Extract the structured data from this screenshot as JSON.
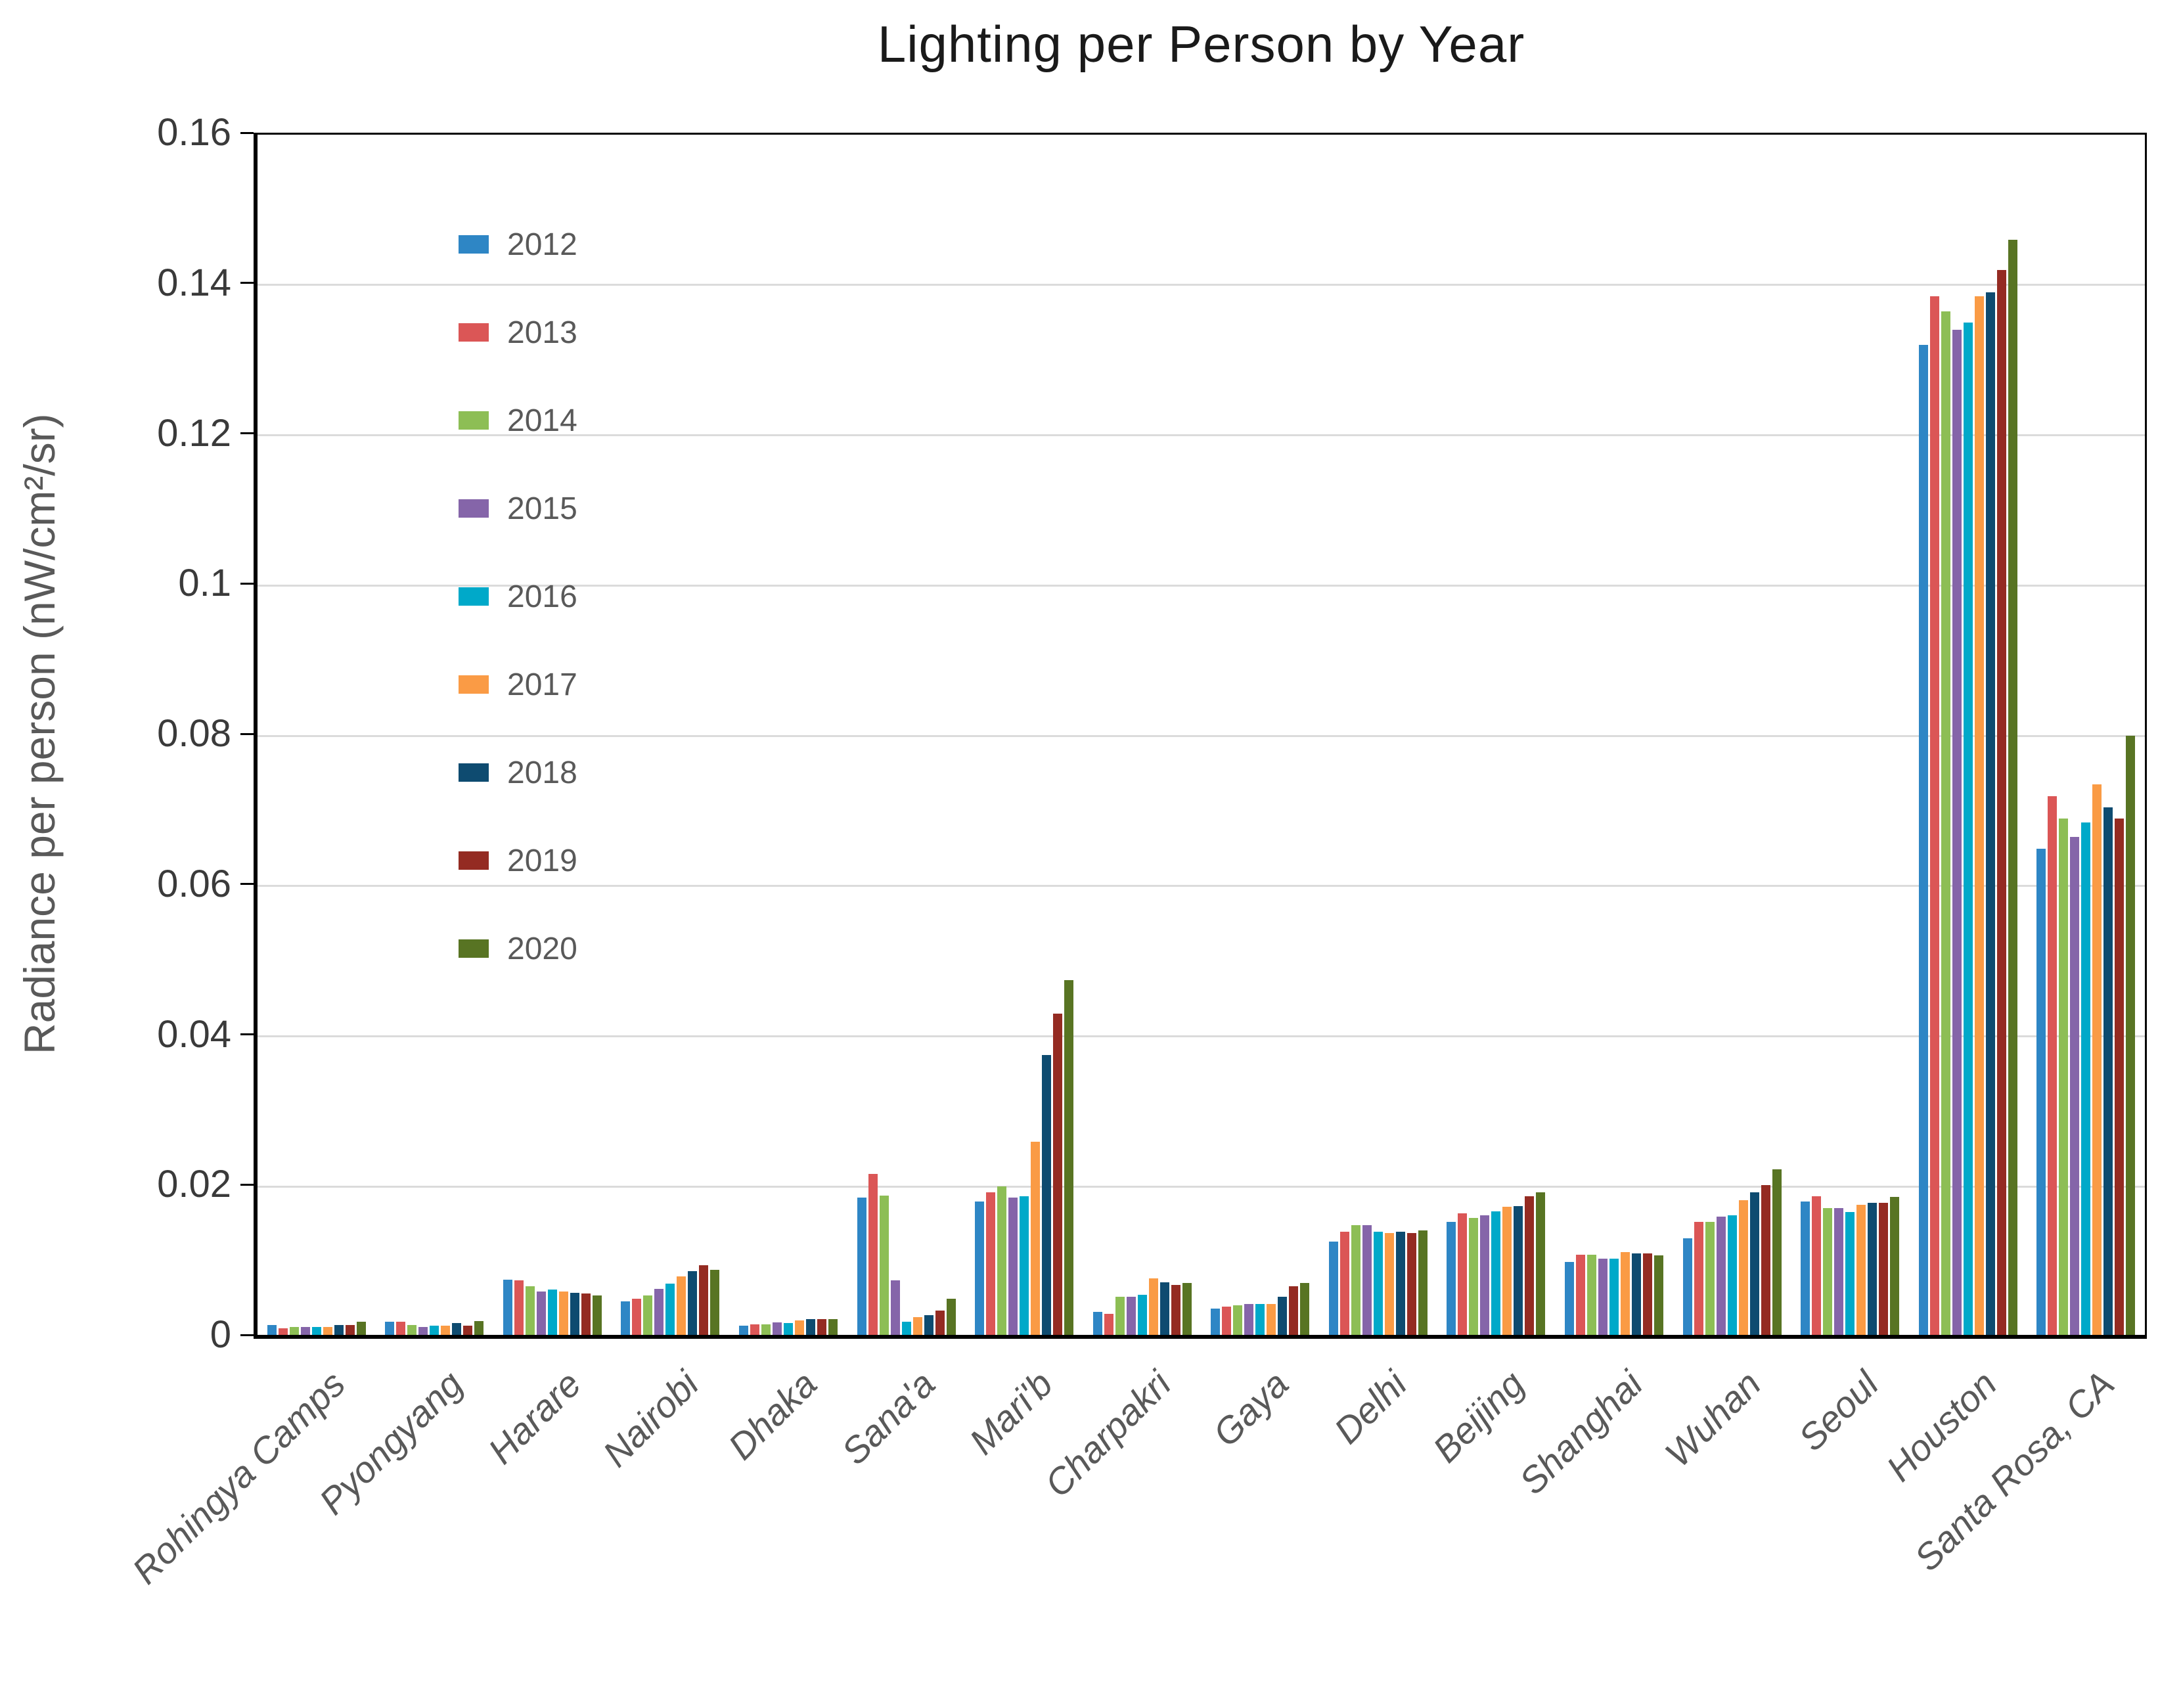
{
  "chart_data": {
    "type": "bar",
    "title": "Lighting per Person by Year",
    "ylabel": "Radiance per person (nW/cm²/sr)",
    "ylim": [
      0,
      0.16
    ],
    "ytick_labels": [
      "0.16",
      "0.14",
      "0.12",
      "0.1",
      "0.08",
      "0.06",
      "0.04",
      "0.02",
      "0"
    ],
    "ytick_values": [
      0.16,
      0.14,
      0.12,
      0.1,
      0.08,
      0.06,
      0.04,
      0.02,
      0
    ],
    "grid": "horizontal",
    "legend_position": "upper-left-inside",
    "categories": [
      "Rohingya Camps",
      "Pyongyang",
      "Harare",
      "Nairobi",
      "Dhaka",
      "Sana'a",
      "Mari'b",
      "Charpakri",
      "Gaya",
      "Delhi",
      "Beijing",
      "Shanghai",
      "Wuhan",
      "Seoul",
      "Houston",
      "Santa Rosa, CA"
    ],
    "series": [
      {
        "name": "2012",
        "color": "#2E86C5",
        "values": [
          0.0016,
          0.002,
          0.0076,
          0.0047,
          0.0015,
          0.0185,
          0.018,
          0.0033,
          0.0038,
          0.0127,
          0.0153,
          0.01,
          0.0131,
          0.018,
          0.132,
          0.065
        ]
      },
      {
        "name": "2013",
        "color": "#DB5656",
        "values": [
          0.0011,
          0.002,
          0.0075,
          0.0051,
          0.0017,
          0.0217,
          0.0192,
          0.0031,
          0.004,
          0.014,
          0.0164,
          0.0109,
          0.0153,
          0.0187,
          0.1385,
          0.072
        ]
      },
      {
        "name": "2014",
        "color": "#8DBE55",
        "values": [
          0.0013,
          0.0016,
          0.0067,
          0.0055,
          0.0017,
          0.0188,
          0.02,
          0.0053,
          0.0042,
          0.0149,
          0.0158,
          0.0109,
          0.0153,
          0.0171,
          0.1365,
          0.069
        ]
      },
      {
        "name": "2015",
        "color": "#8565A9",
        "values": [
          0.0013,
          0.0013,
          0.006,
          0.0064,
          0.0019,
          0.0075,
          0.0185,
          0.0053,
          0.0044,
          0.0149,
          0.0162,
          0.0104,
          0.016,
          0.0171,
          0.134,
          0.0665
        ]
      },
      {
        "name": "2016",
        "color": "#00A9C9",
        "values": [
          0.0013,
          0.0015,
          0.0063,
          0.0071,
          0.0018,
          0.002,
          0.0187,
          0.0056,
          0.0044,
          0.014,
          0.0167,
          0.0104,
          0.0162,
          0.0166,
          0.135,
          0.0685
        ]
      },
      {
        "name": "2017",
        "color": "#FA9B45",
        "values": [
          0.0013,
          0.0015,
          0.006,
          0.008,
          0.0022,
          0.0026,
          0.026,
          0.0078,
          0.0044,
          0.0138,
          0.0173,
          0.0113,
          0.0182,
          0.0176,
          0.1385,
          0.0735
        ]
      },
      {
        "name": "2018",
        "color": "#0E4B70",
        "values": [
          0.0016,
          0.0018,
          0.0059,
          0.0087,
          0.0024,
          0.0029,
          0.0375,
          0.0073,
          0.0053,
          0.014,
          0.0174,
          0.0111,
          0.0192,
          0.0178,
          0.139,
          0.0705
        ]
      },
      {
        "name": "2019",
        "color": "#942B22",
        "values": [
          0.0016,
          0.0015,
          0.0058,
          0.0095,
          0.0024,
          0.0035,
          0.043,
          0.0069,
          0.0067,
          0.0138,
          0.0187,
          0.0111,
          0.0202,
          0.0178,
          0.142,
          0.069
        ]
      },
      {
        "name": "2020",
        "color": "#587423",
        "values": [
          0.002,
          0.0021,
          0.0055,
          0.0089,
          0.0024,
          0.0051,
          0.0475,
          0.0072,
          0.0072,
          0.0142,
          0.0192,
          0.0108,
          0.0223,
          0.0186,
          0.146,
          0.08
        ]
      }
    ]
  }
}
